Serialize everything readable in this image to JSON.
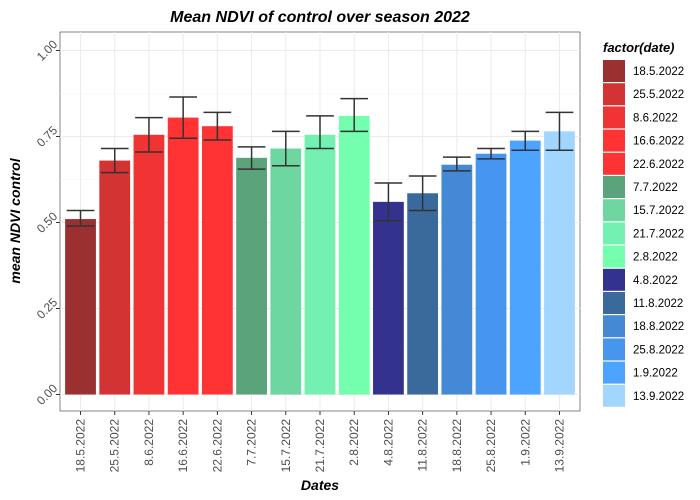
{
  "chart_data": {
    "type": "bar",
    "title": "Mean NDVI of control over season 2022",
    "xlabel": "Dates",
    "ylabel": "mean NDVI control",
    "ylim": [
      0,
      1.03
    ],
    "yticks": [
      "0.00",
      "0.25",
      "0.50",
      "0.75",
      "1.00"
    ],
    "ytick_values": [
      0,
      0.25,
      0.5,
      0.75,
      1.0
    ],
    "grid": true,
    "legend_title": "factor(date)",
    "legend_position": "right",
    "categories": [
      "18.5.2022",
      "25.5.2022",
      "8.6.2022",
      "16.6.2022",
      "22.6.2022",
      "7.7.2022",
      "15.7.2022",
      "21.7.2022",
      "2.8.2022",
      "4.8.2022",
      "11.8.2022",
      "18.8.2022",
      "25.8.2022",
      "1.9.2022",
      "13.9.2022"
    ],
    "values": [
      0.51,
      0.68,
      0.755,
      0.805,
      0.78,
      0.688,
      0.715,
      0.755,
      0.81,
      0.56,
      0.585,
      0.668,
      0.7,
      0.738,
      0.765
    ],
    "error_low": [
      0.49,
      0.645,
      0.705,
      0.745,
      0.74,
      0.655,
      0.665,
      0.715,
      0.765,
      0.505,
      0.535,
      0.65,
      0.685,
      0.71,
      0.71
    ],
    "error_high": [
      0.535,
      0.715,
      0.805,
      0.865,
      0.82,
      0.72,
      0.765,
      0.81,
      0.86,
      0.615,
      0.635,
      0.69,
      0.715,
      0.765,
      0.82
    ],
    "colors": [
      "#9B3030",
      "#D43333",
      "#F03333",
      "#FF3333",
      "#FF3333",
      "#5BA37A",
      "#6ED6A0",
      "#73F0B2",
      "#73FFAD",
      "#33338F",
      "#3A6A9C",
      "#4489D6",
      "#4696F0",
      "#4CA4FF",
      "#A3D6FF"
    ]
  }
}
